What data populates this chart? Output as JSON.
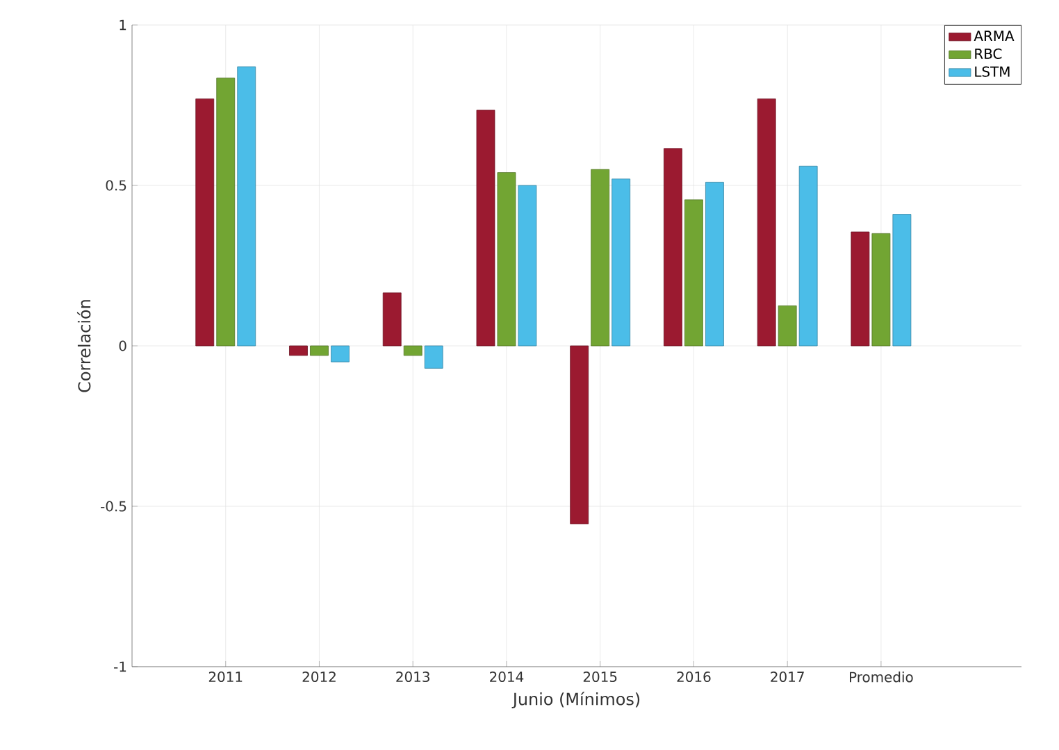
{
  "chart_data": {
    "type": "bar",
    "xlabel": "Junio (Mínimos)",
    "ylabel": "Correlación",
    "categories": [
      "2011",
      "2012",
      "2013",
      "2014",
      "2015",
      "2016",
      "2017",
      "Promedio"
    ],
    "series": [
      {
        "name": "ARMA",
        "color": "#9b1a30",
        "values": [
          0.77,
          -0.03,
          0.165,
          0.735,
          -0.555,
          0.615,
          0.77,
          0.355
        ]
      },
      {
        "name": "RBC",
        "color": "#72a533",
        "values": [
          0.835,
          -0.03,
          -0.03,
          0.54,
          0.55,
          0.455,
          0.125,
          0.35
        ]
      },
      {
        "name": "LSTM",
        "color": "#4bbde8",
        "values": [
          0.87,
          -0.05,
          -0.07,
          0.5,
          0.52,
          0.51,
          0.56,
          0.41
        ]
      }
    ],
    "ylim": [
      -1,
      1
    ],
    "yticks": [
      -1,
      -0.5,
      0,
      0.5,
      1
    ],
    "grid": true,
    "legend": "top right"
  }
}
